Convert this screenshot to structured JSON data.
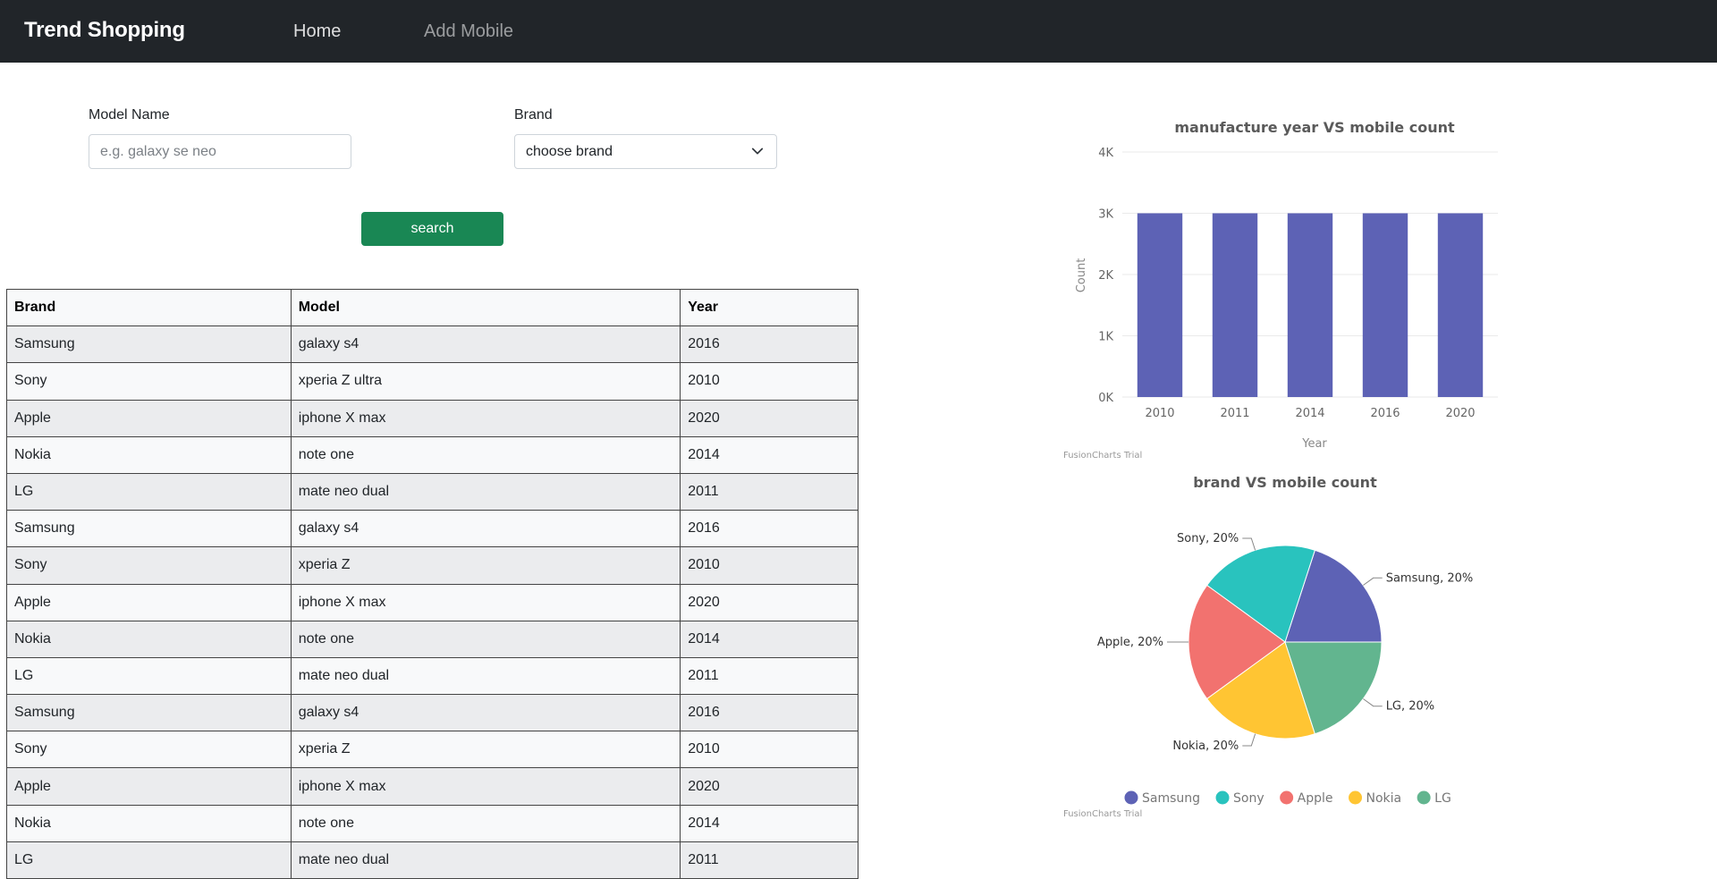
{
  "navbar": {
    "brand": "Trend Shopping",
    "links": [
      "Home",
      "Add Mobile"
    ]
  },
  "search_form": {
    "model_label": "Model Name",
    "model_placeholder": "e.g. galaxy se neo",
    "model_value": "",
    "brand_label": "Brand",
    "brand_selected": "choose brand",
    "search_button": "search"
  },
  "table": {
    "headers": [
      "Brand",
      "Model",
      "Year"
    ],
    "rows": [
      [
        "Samsung",
        "galaxy s4",
        "2016"
      ],
      [
        "Sony",
        "xperia Z ultra",
        "2010"
      ],
      [
        "Apple",
        "iphone X max",
        "2020"
      ],
      [
        "Nokia",
        "note one",
        "2014"
      ],
      [
        "LG",
        "mate neo dual",
        "2011"
      ],
      [
        "Samsung",
        "galaxy s4",
        "2016"
      ],
      [
        "Sony",
        "xperia Z",
        "2010"
      ],
      [
        "Apple",
        "iphone X max",
        "2020"
      ],
      [
        "Nokia",
        "note one",
        "2014"
      ],
      [
        "LG",
        "mate neo dual",
        "2011"
      ],
      [
        "Samsung",
        "galaxy s4",
        "2016"
      ],
      [
        "Sony",
        "xperia Z",
        "2010"
      ],
      [
        "Apple",
        "iphone X max",
        "2020"
      ],
      [
        "Nokia",
        "note one",
        "2014"
      ],
      [
        "LG",
        "mate neo dual",
        "2011"
      ]
    ]
  },
  "colors": {
    "navbar": "#212529",
    "button": "#198754",
    "samsung": "#5d62b5",
    "sony": "#29c3be",
    "apple": "#f2726f",
    "nokia": "#ffc533",
    "lg": "#62b58f"
  },
  "trial_text": "FusionCharts Trial",
  "chart_data": [
    {
      "type": "bar",
      "title": "manufacture year VS mobile count",
      "xlabel": "Year",
      "ylabel": "Count",
      "categories": [
        "2010",
        "2011",
        "2014",
        "2016",
        "2020"
      ],
      "values": [
        3000,
        3000,
        3000,
        3000,
        3000
      ],
      "ylim": [
        0,
        4000
      ],
      "yticks": [
        "0K",
        "1K",
        "2K",
        "3K",
        "4K"
      ],
      "grid": true
    },
    {
      "type": "pie",
      "title": "brand VS mobile count",
      "labels": [
        "Samsung",
        "Sony",
        "Apple",
        "Nokia",
        "LG"
      ],
      "values": [
        20,
        20,
        20,
        20,
        20
      ],
      "slice_labels": [
        "Samsung, 20%",
        "Sony, 20%",
        "Apple, 20%",
        "Nokia, 20%",
        "LG, 20%"
      ],
      "legend": "bottom"
    }
  ]
}
